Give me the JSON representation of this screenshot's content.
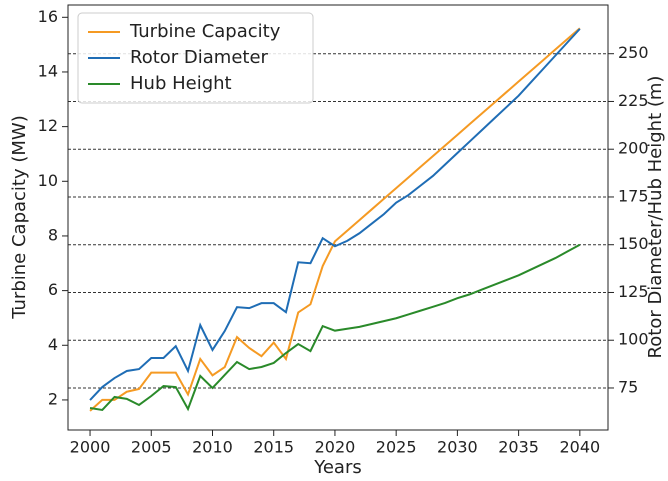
{
  "chart_data": {
    "type": "line",
    "xlabel": "Years",
    "ylabel": "Turbine Capacity (MW)",
    "y2label": "Rotor Diameter/Hub Height (m)",
    "x": [
      2000,
      2001,
      2002,
      2003,
      2004,
      2005,
      2006,
      2007,
      2008,
      2009,
      2010,
      2011,
      2012,
      2013,
      2014,
      2015,
      2016,
      2017,
      2018,
      2019,
      2020,
      2021,
      2022,
      2023,
      2024,
      2025,
      2026,
      2027,
      2028,
      2029,
      2030,
      2031,
      2032,
      2033,
      2034,
      2035,
      2036,
      2037,
      2038,
      2039,
      2040
    ],
    "xlim": [
      1998.2,
      2042.3
    ],
    "xticks": [
      2000,
      2005,
      2010,
      2015,
      2020,
      2025,
      2030,
      2035,
      2040
    ],
    "ylim": [
      0.9,
      16.45
    ],
    "yticks": [
      2,
      4,
      6,
      8,
      10,
      12,
      14,
      16
    ],
    "y2lim": [
      53,
      275.5
    ],
    "y2ticks": [
      75,
      100,
      125,
      150,
      175,
      200,
      225,
      250
    ],
    "grid": "y2",
    "legend": "upper left",
    "series": [
      {
        "name": "Turbine Capacity",
        "color": "#f59a23",
        "axis": "y",
        "values": [
          1.6,
          2.0,
          2.0,
          2.3,
          2.4,
          3.0,
          3.0,
          3.0,
          2.2,
          3.5,
          2.9,
          3.2,
          4.3,
          3.9,
          3.6,
          4.1,
          3.5,
          5.2,
          5.5,
          6.9,
          7.8,
          8.19,
          8.58,
          8.97,
          9.36,
          9.75,
          10.14,
          10.53,
          10.92,
          11.31,
          11.7,
          12.09,
          12.48,
          12.87,
          13.26,
          13.65,
          14.04,
          14.43,
          14.82,
          15.21,
          15.6
        ]
      },
      {
        "name": "Rotor Diameter",
        "color": "#1f6db5",
        "axis": "y2",
        "values": [
          68.7,
          75.5,
          80.2,
          83.9,
          84.9,
          90.7,
          90.7,
          96.9,
          83.9,
          107.9,
          94.9,
          104.8,
          117.3,
          116.8,
          119.4,
          119.4,
          114.7,
          140.8,
          140.3,
          153.4,
          149.2,
          152,
          156,
          161,
          166,
          172,
          176,
          181,
          186,
          192,
          198,
          204,
          210,
          216,
          222,
          228,
          235,
          242,
          249,
          256,
          263
        ]
      },
      {
        "name": "Hub Height",
        "color": "#2a8a2a",
        "axis": "y2",
        "values": [
          64.5,
          63.5,
          70.3,
          69.3,
          66.1,
          70.8,
          76,
          75.5,
          64,
          81.3,
          75,
          81.8,
          88.6,
          84.9,
          86,
          88.1,
          93.3,
          98,
          94.3,
          107.4,
          105,
          106,
          107,
          108.5,
          110,
          111.5,
          113.5,
          115.5,
          117.5,
          119.5,
          122,
          124,
          126.5,
          129,
          131.5,
          134,
          137,
          140,
          143,
          146.5,
          150
        ]
      }
    ]
  }
}
